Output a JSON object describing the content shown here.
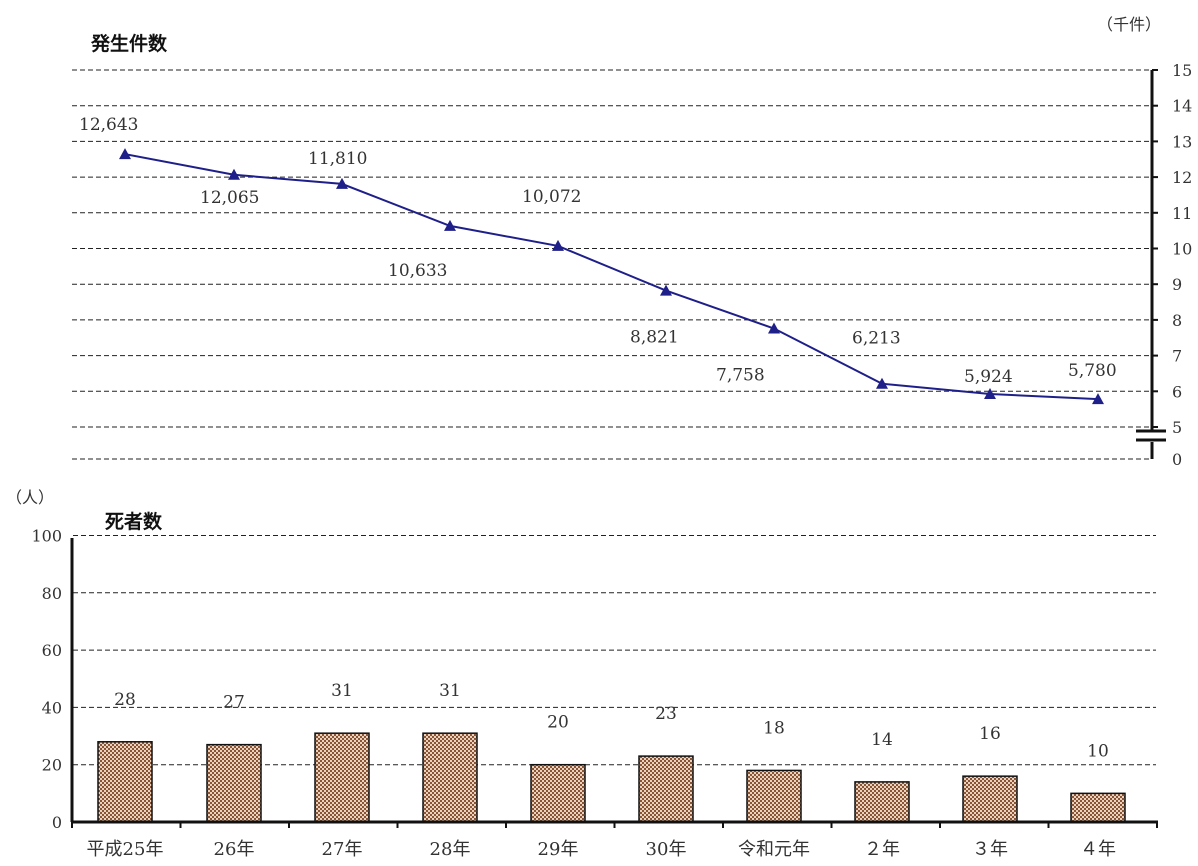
{
  "chart_data": [
    {
      "type": "line",
      "title": "発生件数",
      "unit_label": "（千件）",
      "y_axis_ticks": [
        "0",
        "5",
        "6",
        "7",
        "8",
        "9",
        "10",
        "11",
        "12",
        "13",
        "14",
        "15"
      ],
      "axis_break": "between 0 and 5",
      "ylim": [
        5,
        15
      ],
      "categories": [
        "平成25年",
        "26年",
        "27年",
        "28年",
        "29年",
        "30年",
        "令和元年",
        "2年",
        "3年",
        "4年"
      ],
      "series": [
        {
          "values": [
            12.643,
            12.065,
            11.81,
            10.633,
            10.072,
            8.821,
            7.758,
            6.213,
            5.924,
            5.78
          ],
          "labels": [
            "12,643",
            "12,065",
            "11,810",
            "10,633",
            "10,072",
            "8,821",
            "7,758",
            "6,213",
            "5,924",
            "5,780"
          ],
          "color": "#1f1f8a",
          "marker": "triangle"
        }
      ],
      "y_axis_side": "right",
      "grid": true
    },
    {
      "type": "bar",
      "title": "死者数",
      "unit_label": "（人）",
      "y_axis_ticks": [
        "0",
        "20",
        "40",
        "60",
        "80",
        "100"
      ],
      "ylim": [
        0,
        100
      ],
      "categories": [
        "平成25年",
        "26年",
        "27年",
        "28年",
        "29年",
        "30年",
        "令和元年",
        "２年",
        "３年",
        "４年"
      ],
      "values": [
        28,
        27,
        31,
        31,
        20,
        23,
        18,
        14,
        16,
        10
      ],
      "labels": [
        "28",
        "27",
        "31",
        "31",
        "20",
        "23",
        "18",
        "14",
        "16",
        "10"
      ],
      "bar_fill": "#a8744f",
      "grid": true
    }
  ]
}
